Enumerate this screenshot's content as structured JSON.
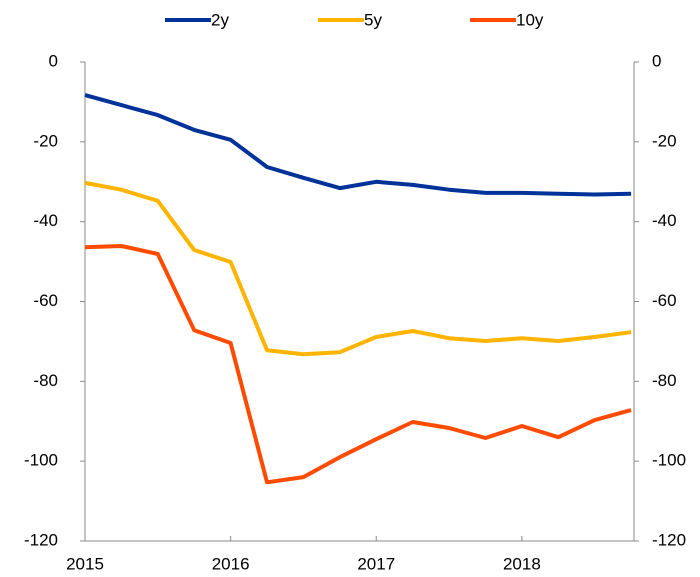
{
  "chart_data": {
    "type": "line",
    "x": [
      2015,
      2015.25,
      2015.5,
      2015.75,
      2016,
      2016.25,
      2016.5,
      2016.75,
      2017,
      2017.25,
      2017.5,
      2017.75,
      2018,
      2018.25,
      2018.5,
      2018.75
    ],
    "series": [
      {
        "name": "2y",
        "color": "#003299",
        "values": [
          -8.3,
          -10.8,
          -13.3,
          -17,
          -19.5,
          -26.3,
          -29,
          -31.6,
          -30,
          -30.8,
          -32,
          -32.8,
          -32.8,
          -33,
          -33.2,
          -33
        ]
      },
      {
        "name": "5y",
        "color": "#ffb400",
        "values": [
          -30.3,
          -32,
          -34.8,
          -47.1,
          -50.1,
          -72.2,
          -73.2,
          -72.7,
          -68.9,
          -67.4,
          -69.2,
          -69.9,
          -69.2,
          -69.9,
          -68.9,
          -67.7
        ]
      },
      {
        "name": "10y",
        "color": "#ff4b00",
        "values": [
          -46.4,
          -46.1,
          -48.1,
          -67.2,
          -70.4,
          -105.3,
          -104,
          -99,
          -94.5,
          -90.2,
          -91.7,
          -94.2,
          -91.2,
          -94,
          -89.7,
          -87.2
        ]
      }
    ],
    "xlim": [
      2015,
      2018.77
    ],
    "xticks": [
      2015,
      2016,
      2017,
      2018
    ],
    "ylim": [
      -120,
      0
    ],
    "yticks": [
      0,
      -20,
      -40,
      -60,
      -80,
      -100,
      -120
    ],
    "y2lim": [
      -120,
      0
    ],
    "y2ticks": [
      0,
      -20,
      -40,
      -60,
      -80,
      -100,
      -120
    ],
    "legend": "top",
    "grid": false
  }
}
